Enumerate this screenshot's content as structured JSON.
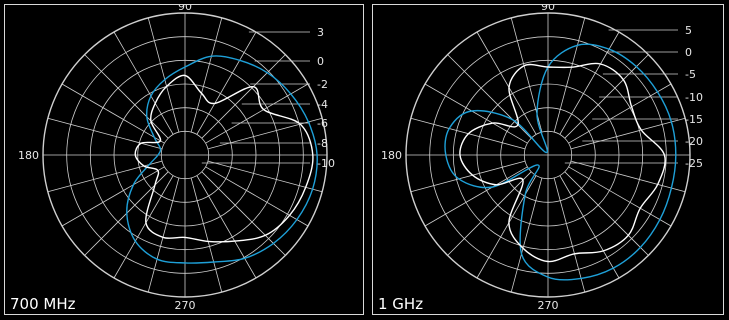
{
  "colors": {
    "background": "#000000",
    "grid": "#cfcfcf",
    "trace_white": "#ffffff",
    "trace_blue": "#1ea0d8"
  },
  "chart_data": [
    {
      "type": "polar",
      "label": "700 MHz",
      "angle_ticks": [
        "90",
        "180",
        "270"
      ],
      "radial_ticks": [
        "3",
        "0",
        "-2",
        "-4",
        "-6",
        "-8",
        "-10"
      ],
      "grid": true,
      "series": [
        {
          "color": "#1ea0d8",
          "angles": [
            0,
            15,
            30,
            45,
            60,
            75,
            90,
            105,
            120,
            135,
            150,
            165,
            180,
            195,
            210,
            225,
            240,
            255,
            270,
            285,
            300,
            315,
            330,
            345
          ],
          "values": [
            0.93,
            0.9,
            0.86,
            0.82,
            0.77,
            0.72,
            0.62,
            0.55,
            0.48,
            0.38,
            0.25,
            0.18,
            0.19,
            0.26,
            0.42,
            0.58,
            0.7,
            0.76,
            0.76,
            0.78,
            0.84,
            0.88,
            0.91,
            0.93
          ]
        },
        {
          "color": "#ffffff",
          "angles": [
            0,
            15,
            30,
            45,
            60,
            75,
            90,
            105,
            120,
            135,
            150,
            165,
            180,
            195,
            210,
            225,
            240,
            255,
            270,
            285,
            300,
            315,
            330,
            345
          ],
          "values": [
            0.9,
            0.84,
            0.64,
            0.68,
            0.42,
            0.45,
            0.56,
            0.5,
            0.42,
            0.34,
            0.2,
            0.32,
            0.35,
            0.3,
            0.22,
            0.3,
            0.55,
            0.6,
            0.58,
            0.63,
            0.7,
            0.8,
            0.85,
            0.88
          ]
        }
      ]
    },
    {
      "type": "polar",
      "label": "1 GHz",
      "angle_ticks": [
        "90",
        "180",
        "270"
      ],
      "radial_ticks": [
        "5",
        "0",
        "-5",
        "-10",
        "-15",
        "-20",
        "-25"
      ],
      "grid": true,
      "series": [
        {
          "color": "#1ea0d8",
          "angles": [
            0,
            15,
            30,
            45,
            60,
            75,
            90,
            105,
            120,
            135,
            150,
            165,
            180,
            195,
            210,
            225,
            240,
            255,
            270,
            285,
            300,
            315,
            330,
            345
          ],
          "values": [
            0.9,
            0.9,
            0.89,
            0.88,
            0.86,
            0.8,
            0.62,
            0.3,
            0.02,
            0.35,
            0.62,
            0.72,
            0.72,
            0.65,
            0.45,
            0.1,
            0.32,
            0.72,
            0.86,
            0.9,
            0.92,
            0.92,
            0.91,
            0.9
          ]
        },
        {
          "color": "#ffffff",
          "angles": [
            0,
            15,
            30,
            45,
            60,
            75,
            90,
            105,
            120,
            135,
            150,
            165,
            180,
            195,
            210,
            225,
            240,
            255,
            270,
            285,
            300,
            315,
            330,
            345
          ],
          "values": [
            0.82,
            0.68,
            0.68,
            0.75,
            0.74,
            0.64,
            0.62,
            0.65,
            0.55,
            0.3,
            0.45,
            0.58,
            0.62,
            0.55,
            0.42,
            0.25,
            0.55,
            0.68,
            0.75,
            0.72,
            0.78,
            0.8,
            0.75,
            0.8
          ]
        }
      ]
    }
  ]
}
